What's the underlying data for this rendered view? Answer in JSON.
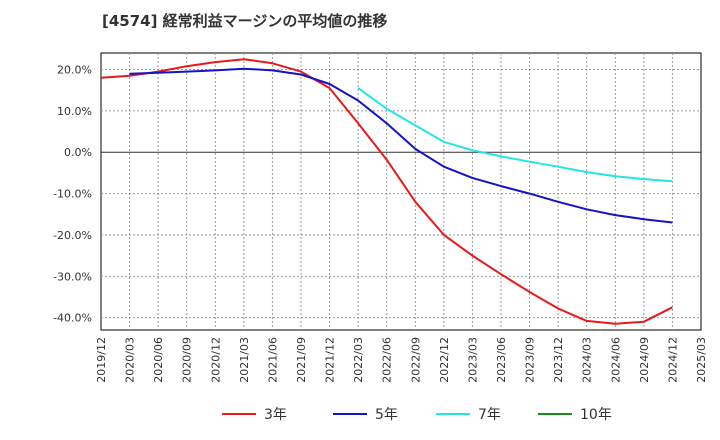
{
  "chart_data": {
    "type": "line",
    "title": "[4574]  経常利益マージンの平均値の推移",
    "xlabel": "",
    "ylabel": "",
    "x_ticks": [
      "2019/12",
      "2020/03",
      "2020/06",
      "2020/09",
      "2020/12",
      "2021/03",
      "2021/06",
      "2021/09",
      "2021/12",
      "2022/03",
      "2022/06",
      "2022/09",
      "2022/12",
      "2023/03",
      "2023/06",
      "2023/09",
      "2023/12",
      "2024/03",
      "2024/06",
      "2024/09",
      "2024/12",
      "2025/03"
    ],
    "y_ticks": [
      20.0,
      10.0,
      0.0,
      -10.0,
      -20.0,
      -30.0,
      -40.0
    ],
    "y_tick_labels": [
      "20.0%",
      "10.0%",
      "0.0%",
      "-10.0%",
      "-20.0%",
      "-30.0%",
      "-40.0%"
    ],
    "ylim": [
      -43,
      24
    ],
    "grid": true,
    "legend_position": "bottom",
    "series": [
      {
        "name": "3年",
        "color": "#e8191a",
        "x": [
          "2019/12",
          "2020/03",
          "2020/06",
          "2020/09",
          "2020/12",
          "2021/03",
          "2021/06",
          "2021/09",
          "2021/12",
          "2022/03",
          "2022/06",
          "2022/09",
          "2022/12",
          "2023/03",
          "2023/06",
          "2023/09",
          "2023/12",
          "2024/03",
          "2024/06",
          "2024/09",
          "2024/12"
        ],
        "values": [
          18.0,
          18.5,
          19.5,
          20.8,
          21.8,
          22.5,
          21.5,
          19.5,
          15.5,
          7.0,
          -1.8,
          -12.0,
          -20.0,
          -25.0,
          -29.5,
          -33.8,
          -37.8,
          -40.8,
          -41.5,
          -41.0,
          -37.5
        ]
      },
      {
        "name": "5年",
        "color": "#1414c8",
        "x": [
          "2020/03",
          "2020/06",
          "2020/09",
          "2020/12",
          "2021/03",
          "2021/06",
          "2021/09",
          "2021/12",
          "2022/03",
          "2022/06",
          "2022/09",
          "2022/12",
          "2023/03",
          "2023/06",
          "2023/09",
          "2023/12",
          "2024/03",
          "2024/06",
          "2024/09",
          "2024/12"
        ],
        "values": [
          19.0,
          19.2,
          19.5,
          19.8,
          20.2,
          19.8,
          18.8,
          16.5,
          12.5,
          7.0,
          0.8,
          -3.5,
          -6.2,
          -8.2,
          -10.0,
          -12.0,
          -13.8,
          -15.2,
          -16.2,
          -17.0
        ]
      },
      {
        "name": "7年",
        "color": "#22e6e6",
        "x": [
          "2022/03",
          "2022/06",
          "2022/09",
          "2022/12",
          "2023/03",
          "2023/06",
          "2023/09",
          "2023/12",
          "2024/03",
          "2024/06",
          "2024/09",
          "2024/12"
        ],
        "values": [
          15.5,
          10.5,
          6.5,
          2.5,
          0.5,
          -1.0,
          -2.3,
          -3.5,
          -4.8,
          -5.8,
          -6.5,
          -7.0
        ]
      },
      {
        "name": "10年",
        "color": "#1a8c1a",
        "x": [],
        "values": []
      }
    ]
  }
}
